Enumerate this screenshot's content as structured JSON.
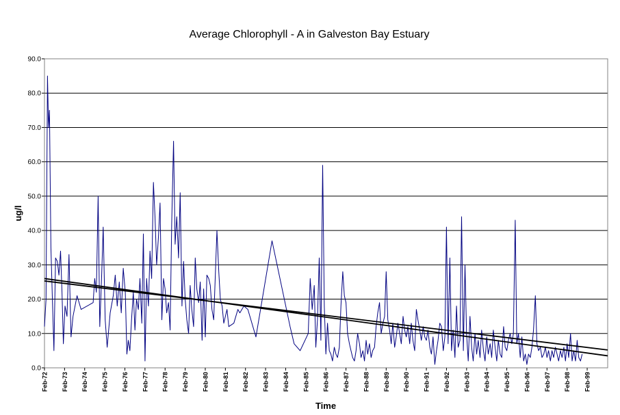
{
  "chart_data": {
    "type": "line",
    "title": "Average Chlorophyll - A  in Galveston Bay Estuary",
    "xlabel": "Time",
    "ylabel": "ug/l",
    "ylim": [
      0,
      90
    ],
    "yticks": [
      "0.0",
      "10.0",
      "20.0",
      "30.0",
      "40.0",
      "50.0",
      "60.0",
      "70.0",
      "80.0",
      "90.0"
    ],
    "xlim": [
      1972.08,
      2000.1
    ],
    "xtick_labels": [
      "Feb-72",
      "Feb-73",
      "Feb-74",
      "Feb-75",
      "Feb-76",
      "Feb-77",
      "Feb-78",
      "Feb-79",
      "Feb-80",
      "Feb-81",
      "Feb-82",
      "Feb-83",
      "Feb-84",
      "Feb-85",
      "Feb-86",
      "Feb-87",
      "Feb-88",
      "Feb-89",
      "Feb-90",
      "Feb-91",
      "Feb-92",
      "Feb-93",
      "Feb-94",
      "Feb-95",
      "Feb-96",
      "Feb-97",
      "Feb-98",
      "Feb-99"
    ],
    "grid": "horizontal",
    "legend": "none",
    "colors": {
      "series": "#000080",
      "trend": "#000000",
      "grid": "#000000",
      "plot_border": "#808080"
    },
    "series": [
      {
        "points": [
          [
            1972.08,
            12
          ],
          [
            1972.16,
            20
          ],
          [
            1972.23,
            85
          ],
          [
            1972.28,
            70
          ],
          [
            1972.33,
            75
          ],
          [
            1972.4,
            35
          ],
          [
            1972.48,
            19
          ],
          [
            1972.55,
            5
          ],
          [
            1972.63,
            32
          ],
          [
            1972.72,
            31
          ],
          [
            1972.8,
            27
          ],
          [
            1972.88,
            34
          ],
          [
            1972.95,
            22
          ],
          [
            1973.02,
            7
          ],
          [
            1973.1,
            18
          ],
          [
            1973.2,
            15
          ],
          [
            1973.3,
            33
          ],
          [
            1973.4,
            9
          ],
          [
            1973.5,
            15
          ],
          [
            1973.7,
            21
          ],
          [
            1973.9,
            17
          ],
          [
            1974.5,
            19
          ],
          [
            1974.58,
            26
          ],
          [
            1974.66,
            22
          ],
          [
            1974.75,
            50
          ],
          [
            1974.83,
            12
          ],
          [
            1974.92,
            26
          ],
          [
            1975.0,
            41
          ],
          [
            1975.1,
            14
          ],
          [
            1975.2,
            6
          ],
          [
            1975.35,
            16
          ],
          [
            1975.5,
            21
          ],
          [
            1975.6,
            27
          ],
          [
            1975.7,
            18
          ],
          [
            1975.8,
            25
          ],
          [
            1975.9,
            16
          ],
          [
            1976.0,
            29
          ],
          [
            1976.1,
            22
          ],
          [
            1976.18,
            4
          ],
          [
            1976.25,
            8
          ],
          [
            1976.33,
            5
          ],
          [
            1976.41,
            14
          ],
          [
            1976.5,
            22
          ],
          [
            1976.58,
            11
          ],
          [
            1976.66,
            20
          ],
          [
            1976.75,
            17
          ],
          [
            1976.83,
            26
          ],
          [
            1976.92,
            13
          ],
          [
            1977.0,
            39
          ],
          [
            1977.08,
            2
          ],
          [
            1977.16,
            26
          ],
          [
            1977.25,
            18
          ],
          [
            1977.33,
            34
          ],
          [
            1977.41,
            26
          ],
          [
            1977.5,
            54
          ],
          [
            1977.58,
            44
          ],
          [
            1977.66,
            30
          ],
          [
            1977.75,
            38
          ],
          [
            1977.83,
            48
          ],
          [
            1977.92,
            14
          ],
          [
            1978.0,
            26
          ],
          [
            1978.08,
            23
          ],
          [
            1978.16,
            16
          ],
          [
            1978.25,
            19
          ],
          [
            1978.33,
            11
          ],
          [
            1978.41,
            42
          ],
          [
            1978.5,
            66
          ],
          [
            1978.58,
            36
          ],
          [
            1978.66,
            44
          ],
          [
            1978.75,
            32
          ],
          [
            1978.83,
            51
          ],
          [
            1978.92,
            18
          ],
          [
            1979.0,
            31
          ],
          [
            1979.08,
            20
          ],
          [
            1979.16,
            14
          ],
          [
            1979.25,
            10
          ],
          [
            1979.33,
            24
          ],
          [
            1979.41,
            17
          ],
          [
            1979.5,
            12
          ],
          [
            1979.58,
            32
          ],
          [
            1979.66,
            23
          ],
          [
            1979.75,
            19
          ],
          [
            1979.83,
            25
          ],
          [
            1979.92,
            8
          ],
          [
            1980.0,
            23
          ],
          [
            1980.08,
            9
          ],
          [
            1980.16,
            27
          ],
          [
            1980.25,
            26
          ],
          [
            1980.33,
            24
          ],
          [
            1980.41,
            17
          ],
          [
            1980.5,
            14
          ],
          [
            1980.66,
            40
          ],
          [
            1980.75,
            28
          ],
          [
            1980.83,
            20
          ],
          [
            1980.92,
            18
          ],
          [
            1981.0,
            13
          ],
          [
            1981.16,
            17
          ],
          [
            1981.25,
            12
          ],
          [
            1981.5,
            13
          ],
          [
            1981.7,
            17
          ],
          [
            1981.8,
            16
          ],
          [
            1982.0,
            18
          ],
          [
            1982.2,
            17
          ],
          [
            1982.6,
            9
          ],
          [
            1983.4,
            37
          ],
          [
            1984.3,
            12
          ],
          [
            1984.5,
            7
          ],
          [
            1984.8,
            5
          ],
          [
            1985.2,
            10
          ],
          [
            1985.3,
            26
          ],
          [
            1985.4,
            17
          ],
          [
            1985.5,
            24
          ],
          [
            1985.58,
            6
          ],
          [
            1985.66,
            14
          ],
          [
            1985.75,
            32
          ],
          [
            1985.83,
            8
          ],
          [
            1985.92,
            59
          ],
          [
            1986.0,
            18
          ],
          [
            1986.08,
            4
          ],
          [
            1986.16,
            13
          ],
          [
            1986.25,
            5
          ],
          [
            1986.33,
            4
          ],
          [
            1986.41,
            2
          ],
          [
            1986.5,
            6
          ],
          [
            1986.58,
            4
          ],
          [
            1986.66,
            3
          ],
          [
            1986.75,
            6
          ],
          [
            1986.83,
            18
          ],
          [
            1986.92,
            28
          ],
          [
            1987.0,
            21
          ],
          [
            1987.08,
            19
          ],
          [
            1987.16,
            10
          ],
          [
            1987.25,
            7
          ],
          [
            1987.33,
            5
          ],
          [
            1987.41,
            3
          ],
          [
            1987.5,
            2
          ],
          [
            1987.58,
            5
          ],
          [
            1987.66,
            10
          ],
          [
            1987.75,
            7
          ],
          [
            1987.83,
            3
          ],
          [
            1987.92,
            5
          ],
          [
            1988.0,
            2
          ],
          [
            1988.08,
            8
          ],
          [
            1988.16,
            4
          ],
          [
            1988.25,
            7
          ],
          [
            1988.33,
            3
          ],
          [
            1988.41,
            5
          ],
          [
            1988.5,
            6
          ],
          [
            1988.58,
            12
          ],
          [
            1988.66,
            16
          ],
          [
            1988.75,
            19
          ],
          [
            1988.83,
            10
          ],
          [
            1988.92,
            13
          ],
          [
            1989.0,
            15
          ],
          [
            1989.08,
            28
          ],
          [
            1989.16,
            14
          ],
          [
            1989.25,
            11
          ],
          [
            1989.33,
            7
          ],
          [
            1989.41,
            13
          ],
          [
            1989.5,
            6
          ],
          [
            1989.58,
            9
          ],
          [
            1989.66,
            13
          ],
          [
            1989.75,
            10
          ],
          [
            1989.83,
            7
          ],
          [
            1989.92,
            15
          ],
          [
            1990.0,
            11
          ],
          [
            1990.08,
            9
          ],
          [
            1990.16,
            12
          ],
          [
            1990.25,
            7
          ],
          [
            1990.33,
            13
          ],
          [
            1990.41,
            8
          ],
          [
            1990.5,
            5
          ],
          [
            1990.58,
            17
          ],
          [
            1990.66,
            14
          ],
          [
            1990.75,
            11
          ],
          [
            1990.83,
            8
          ],
          [
            1990.92,
            12
          ],
          [
            1991.0,
            9
          ],
          [
            1991.08,
            8
          ],
          [
            1991.16,
            11
          ],
          [
            1991.25,
            6
          ],
          [
            1991.33,
            4
          ],
          [
            1991.41,
            9
          ],
          [
            1991.5,
            1
          ],
          [
            1991.58,
            5
          ],
          [
            1991.66,
            8
          ],
          [
            1991.75,
            13
          ],
          [
            1991.83,
            12
          ],
          [
            1991.92,
            5
          ],
          [
            1992.0,
            9
          ],
          [
            1992.08,
            41
          ],
          [
            1992.16,
            7
          ],
          [
            1992.25,
            32
          ],
          [
            1992.33,
            5
          ],
          [
            1992.41,
            11
          ],
          [
            1992.5,
            3
          ],
          [
            1992.58,
            18
          ],
          [
            1992.66,
            6
          ],
          [
            1992.75,
            8
          ],
          [
            1992.83,
            44
          ],
          [
            1992.92,
            5
          ],
          [
            1993.0,
            30
          ],
          [
            1993.08,
            10
          ],
          [
            1993.16,
            2
          ],
          [
            1993.25,
            15
          ],
          [
            1993.33,
            6
          ],
          [
            1993.41,
            2
          ],
          [
            1993.5,
            10
          ],
          [
            1993.58,
            4
          ],
          [
            1993.66,
            8
          ],
          [
            1993.75,
            3
          ],
          [
            1993.83,
            11
          ],
          [
            1993.92,
            5
          ],
          [
            1994.0,
            2
          ],
          [
            1994.08,
            9
          ],
          [
            1994.16,
            4
          ],
          [
            1994.25,
            7
          ],
          [
            1994.33,
            3
          ],
          [
            1994.41,
            11
          ],
          [
            1994.5,
            6
          ],
          [
            1994.58,
            2
          ],
          [
            1994.66,
            8
          ],
          [
            1994.75,
            4
          ],
          [
            1994.83,
            3
          ],
          [
            1994.92,
            12
          ],
          [
            1995.0,
            6
          ],
          [
            1995.08,
            5
          ],
          [
            1995.16,
            8
          ],
          [
            1995.25,
            10
          ],
          [
            1995.33,
            7
          ],
          [
            1995.41,
            10
          ],
          [
            1995.5,
            43
          ],
          [
            1995.58,
            7
          ],
          [
            1995.66,
            10
          ],
          [
            1995.75,
            3
          ],
          [
            1995.83,
            9
          ],
          [
            1995.92,
            2
          ],
          [
            1996.0,
            4
          ],
          [
            1996.08,
            1
          ],
          [
            1996.16,
            4
          ],
          [
            1996.25,
            3
          ],
          [
            1996.33,
            6
          ],
          [
            1996.41,
            11
          ],
          [
            1996.5,
            21
          ],
          [
            1996.58,
            7
          ],
          [
            1996.66,
            5
          ],
          [
            1996.75,
            6
          ],
          [
            1996.83,
            3
          ],
          [
            1996.92,
            4
          ],
          [
            1997.0,
            6
          ],
          [
            1997.08,
            3
          ],
          [
            1997.16,
            5
          ],
          [
            1997.25,
            2
          ],
          [
            1997.33,
            5
          ],
          [
            1997.41,
            3
          ],
          [
            1997.5,
            6
          ],
          [
            1997.58,
            4
          ],
          [
            1997.66,
            2
          ],
          [
            1997.75,
            5
          ],
          [
            1997.83,
            3
          ],
          [
            1997.92,
            6
          ],
          [
            1998.0,
            2
          ],
          [
            1998.08,
            7
          ],
          [
            1998.16,
            3
          ],
          [
            1998.25,
            10
          ],
          [
            1998.33,
            2
          ],
          [
            1998.41,
            5
          ],
          [
            1998.5,
            2
          ],
          [
            1998.58,
            8
          ],
          [
            1998.66,
            3
          ],
          [
            1998.75,
            2
          ],
          [
            1998.83,
            4
          ]
        ]
      }
    ],
    "trendlines": [
      {
        "type": "linear",
        "from": [
          1972.08,
          26.0
        ],
        "to": [
          2000.1,
          3.5
        ]
      },
      {
        "type": "linear",
        "from": [
          1972.08,
          25.3
        ],
        "to": [
          2000.1,
          5.2
        ]
      }
    ]
  }
}
